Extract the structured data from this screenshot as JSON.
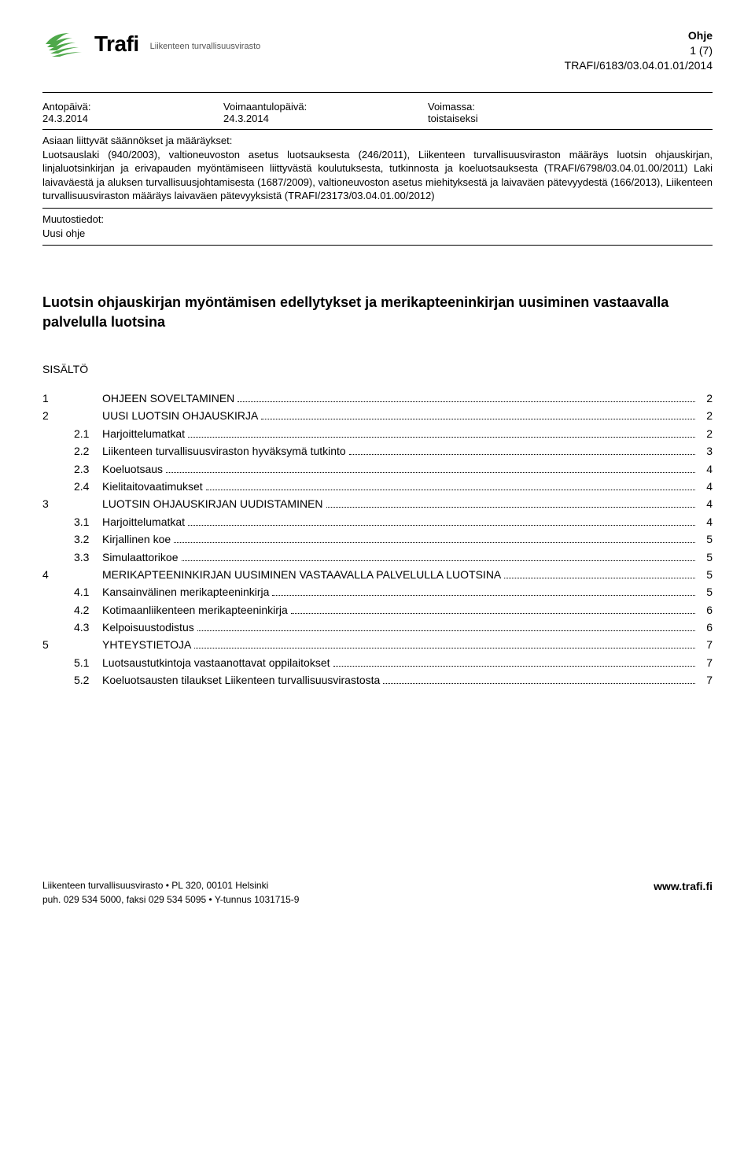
{
  "logo": {
    "word": "Trafi",
    "subtitle": "Liikenteen turvallisuusvirasto",
    "accent_color": "#4ea84a",
    "text_color": "#000000"
  },
  "doc_meta": {
    "title": "Ohje",
    "page": "1 (7)",
    "ref": "TRAFI/6183/03.04.01.01/2014"
  },
  "header_labels": {
    "antopaiva": "Antopäivä:",
    "voimaantulo": "Voimaantulopäivä:",
    "voimassa": "Voimassa:"
  },
  "header_values": {
    "antopaiva": "24.3.2014",
    "voimaantulo": "24.3.2014",
    "voimassa": "toistaiseksi"
  },
  "asiaan_label": "Asiaan liittyvät säännökset ja määräykset:",
  "asiaan_body": "Luotsauslaki (940/2003), valtioneuvoston asetus luotsauksesta (246/2011), Liikenteen turvallisuusviraston määräys luotsin ohjauskirjan, linjaluotsinkirjan ja erivapauden myöntämiseen liittyvästä koulutuksesta, tutkinnosta ja koeluotsauksesta (TRAFI/6798/03.04.01.00/2011) Laki laivaväestä ja aluksen turvallisuusjohtamisesta (1687/2009), valtioneuvoston asetus miehityksestä ja laivaväen pätevyydestä (166/2013), Liikenteen turvallisuusviraston määräys laivaväen pätevyyksistä (TRAFI/23173/03.04.01.00/2012)",
  "muutos_label": "Muutostiedot:",
  "muutos_value": "Uusi ohje",
  "main_title": "Luotsin ohjauskirjan myöntämisen edellytykset ja merikapteeninkirjan uusiminen vastaavalla palvelulla luotsina",
  "sisalto_label": "SISÄLTÖ",
  "toc": [
    {
      "num": "1",
      "sub": "",
      "label": "OHJEEN SOVELTAMINEN",
      "page": "2",
      "level": 0
    },
    {
      "num": "2",
      "sub": "",
      "label": "UUSI LUOTSIN OHJAUSKIRJA",
      "page": "2",
      "level": 0
    },
    {
      "num": "",
      "sub": "2.1",
      "label": "Harjoittelumatkat",
      "page": "2",
      "level": 1
    },
    {
      "num": "",
      "sub": "2.2",
      "label": "Liikenteen turvallisuusviraston hyväksymä tutkinto",
      "page": "3",
      "level": 1
    },
    {
      "num": "",
      "sub": "2.3",
      "label": "Koeluotsaus",
      "page": "4",
      "level": 1
    },
    {
      "num": "",
      "sub": "2.4",
      "label": "Kielitaitovaatimukset",
      "page": "4",
      "level": 1
    },
    {
      "num": "3",
      "sub": "",
      "label": "LUOTSIN OHJAUSKIRJAN UUDISTAMINEN",
      "page": "4",
      "level": 0
    },
    {
      "num": "",
      "sub": "3.1",
      "label": "Harjoittelumatkat",
      "page": "4",
      "level": 1
    },
    {
      "num": "",
      "sub": "3.2",
      "label": "Kirjallinen koe",
      "page": "5",
      "level": 1
    },
    {
      "num": "",
      "sub": "3.3",
      "label": "Simulaattorikoe",
      "page": "5",
      "level": 1
    },
    {
      "num": "4",
      "sub": "",
      "label": "MERIKAPTEENINKIRJAN UUSIMINEN VASTAAVALLA PALVELULLA LUOTSINA",
      "page": "5",
      "level": 0
    },
    {
      "num": "",
      "sub": "4.1",
      "label": "Kansainvälinen merikapteeninkirja",
      "page": "5",
      "level": 1
    },
    {
      "num": "",
      "sub": "4.2",
      "label": "Kotimaanliikenteen merikapteeninkirja",
      "page": "6",
      "level": 1
    },
    {
      "num": "",
      "sub": "4.3",
      "label": "Kelpoisuustodistus",
      "page": "6",
      "level": 1
    },
    {
      "num": "5",
      "sub": "",
      "label": "YHTEYSTIETOJA",
      "page": "7",
      "level": 0
    },
    {
      "num": "",
      "sub": "5.1",
      "label": "Luotsaustutkintoja vastaanottavat oppilaitokset",
      "page": "7",
      "level": 1
    },
    {
      "num": "",
      "sub": "5.2",
      "label": "Koeluotsausten tilaukset Liikenteen turvallisuusvirastosta",
      "page": "7",
      "level": 1
    }
  ],
  "footer": {
    "line1": "Liikenteen turvallisuusvirasto • PL 320, 00101 Helsinki",
    "line2": "puh. 029 534 5000, faksi 029 534 5095 • Y-tunnus 1031715-9",
    "url": "www.trafi.fi"
  },
  "colors": {
    "rule": "#000000",
    "text": "#000000",
    "background": "#ffffff"
  }
}
